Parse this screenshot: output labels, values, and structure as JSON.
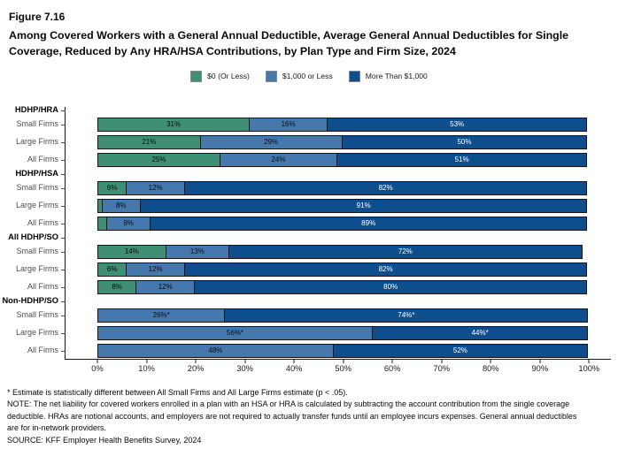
{
  "figure": {
    "number": "Figure 7.16",
    "title": "Among Covered Workers with a General Annual Deductible, Average General Annual Deductibles for Single Coverage, Reduced by Any HRA/HSA Contributions, by Plan Type and Firm Size, 2024"
  },
  "colors": {
    "green": "#3E8F73",
    "mid_blue": "#4579AE",
    "dark_blue": "#0E4E8D",
    "axis": "#1a1a1a"
  },
  "chart_data": {
    "type": "bar",
    "stacked": true,
    "orientation": "horizontal",
    "xlim": [
      0,
      100
    ],
    "grid": false,
    "legend_position": "top-center",
    "x_ticks": [
      "0%",
      "10%",
      "20%",
      "30%",
      "40%",
      "50%",
      "60%",
      "70%",
      "80%",
      "90%",
      "100%"
    ],
    "legend": [
      {
        "label": "$0 (Or Less)",
        "color": "#3E8F73",
        "text": "#0a0a0a"
      },
      {
        "label": "$1,000 or Less",
        "color": "#4579AE",
        "text": "#0a0a0a"
      },
      {
        "label": "More Than $1,000",
        "color": "#0E4E8D",
        "text": "#ffffff"
      }
    ],
    "groups": [
      {
        "label": "HDHP/HRA",
        "rows": [
          {
            "label": "Small Firms",
            "values": [
              31,
              16,
              53
            ],
            "labels": [
              "31%",
              "16%",
              "53%"
            ]
          },
          {
            "label": "Large Firms",
            "values": [
              21,
              29,
              50
            ],
            "labels": [
              "21%",
              "29%",
              "50%"
            ]
          },
          {
            "label": "All Firms",
            "values": [
              25,
              24,
              51
            ],
            "labels": [
              "25%",
              "24%",
              "51%"
            ]
          }
        ]
      },
      {
        "label": "HDHP/HSA",
        "rows": [
          {
            "label": "Small Firms",
            "values": [
              6,
              12,
              82
            ],
            "labels": [
              "6%",
              "12%",
              "82%"
            ]
          },
          {
            "label": "Large Firms",
            "values": [
              1,
              8,
              91
            ],
            "labels": [
              "",
              "8%",
              "91%"
            ]
          },
          {
            "label": "All Firms",
            "values": [
              2,
              9,
              89
            ],
            "labels": [
              "",
              "9%",
              "89%"
            ]
          }
        ]
      },
      {
        "label": "All HDHP/SO",
        "rows": [
          {
            "label": "Small Firms",
            "values": [
              14,
              13,
              72
            ],
            "labels": [
              "14%",
              "13%",
              "72%"
            ]
          },
          {
            "label": "Large Firms",
            "values": [
              6,
              12,
              82
            ],
            "labels": [
              "6%",
              "12%",
              "82%"
            ]
          },
          {
            "label": "All Firms",
            "values": [
              8,
              12,
              80
            ],
            "labels": [
              "8%",
              "12%",
              "80%"
            ]
          }
        ]
      },
      {
        "label": "Non-HDHP/SO",
        "rows": [
          {
            "label": "Small Firms",
            "values": [
              0,
              26,
              74
            ],
            "labels": [
              "",
              "26%*",
              "74%*"
            ]
          },
          {
            "label": "Large Firms",
            "values": [
              0,
              56,
              44
            ],
            "labels": [
              "",
              "56%*",
              "44%*"
            ]
          },
          {
            "label": "All Firms",
            "values": [
              0,
              48,
              52
            ],
            "labels": [
              "",
              "48%",
              "52%"
            ]
          }
        ]
      }
    ]
  },
  "footnotes": [
    "* Estimate is statistically different between All Small Firms and All Large Firms estimate (p < .05).",
    "NOTE: The net liability for covered workers enrolled in a plan with an HSA or HRA is calculated by subtracting the account contribution from the single coverage deductible. HRAs are notional accounts, and employers are not required to actually transfer funds until an employee incurs expenses. General annual deductibles are for in-network providers.",
    "SOURCE: KFF Employer Health Benefits Survey, 2024"
  ]
}
